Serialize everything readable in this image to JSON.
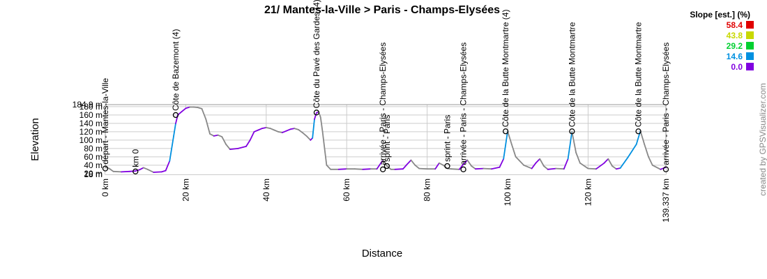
{
  "chart_data": {
    "type": "area",
    "title": "21/ Mantes-la-Ville > Paris - Champs-Elysées",
    "xlabel": "Distance",
    "ylabel": "Elevation",
    "xlim": [
      0,
      139.337
    ],
    "ylim": [
      18,
      184.9
    ],
    "x_ticks": [
      {
        "value": 0,
        "label": "0 km"
      },
      {
        "value": 20,
        "label": "20 km"
      },
      {
        "value": 40,
        "label": "40 km"
      },
      {
        "value": 60,
        "label": "60 km"
      },
      {
        "value": 80,
        "label": "80 km"
      },
      {
        "value": 100,
        "label": "100 km"
      },
      {
        "value": 120,
        "label": "120 km"
      },
      {
        "value": 139.337,
        "label": "139.337 km"
      }
    ],
    "y_ticks": [
      {
        "value": 18,
        "label": "18 m"
      },
      {
        "value": 20,
        "label": "20 m"
      },
      {
        "value": 40,
        "label": "40 m"
      },
      {
        "value": 60,
        "label": "60 m"
      },
      {
        "value": 80,
        "label": "80 m"
      },
      {
        "value": 100,
        "label": "100 m"
      },
      {
        "value": 120,
        "label": "120 m"
      },
      {
        "value": 140,
        "label": "140 m"
      },
      {
        "value": 160,
        "label": "160 m"
      },
      {
        "value": 180,
        "label": "180 m"
      },
      {
        "value": 184.9,
        "label": "184.9 m"
      }
    ],
    "profile": {
      "x": [
        0,
        1,
        2,
        4,
        6,
        7.5,
        8.5,
        9.5,
        10.5,
        12,
        14,
        15,
        16,
        17,
        17.5,
        18,
        19,
        20,
        21,
        22,
        23,
        24,
        25,
        26,
        27,
        28,
        29,
        30,
        31,
        33,
        35,
        36,
        37,
        38,
        39,
        40,
        41,
        42,
        43,
        44,
        45,
        46,
        47,
        48,
        49,
        50,
        51,
        51.5,
        52,
        52.5,
        53,
        53.5,
        54,
        54.5,
        55,
        56,
        58,
        60,
        62,
        64,
        66,
        67.5,
        69,
        70,
        71,
        72,
        74,
        75,
        76,
        77,
        78,
        80,
        82,
        83,
        84,
        85,
        86,
        88,
        89,
        90,
        91,
        92,
        94,
        96,
        98,
        99,
        100,
        101,
        102,
        104,
        106,
        107,
        108,
        109,
        110,
        112,
        114,
        115,
        116,
        117,
        118,
        120,
        122,
        124,
        125,
        126,
        127,
        128,
        130,
        132,
        133,
        134,
        135,
        136,
        138,
        139.337
      ],
      "y": [
        35,
        32,
        25,
        24,
        25,
        26,
        29,
        34,
        30,
        23,
        24,
        27,
        50,
        110,
        140,
        160,
        168,
        176,
        179,
        179,
        178,
        175,
        150,
        115,
        110,
        112,
        108,
        90,
        78,
        80,
        85,
        100,
        120,
        124,
        128,
        130,
        128,
        124,
        120,
        118,
        122,
        126,
        128,
        125,
        118,
        110,
        100,
        105,
        150,
        165,
        168,
        155,
        120,
        80,
        40,
        30,
        30,
        31,
        31,
        30,
        31,
        31,
        52,
        38,
        30,
        30,
        31,
        42,
        52,
        40,
        32,
        31,
        31,
        45,
        40,
        32,
        31,
        30,
        42,
        52,
        38,
        31,
        32,
        31,
        35,
        55,
        121,
        90,
        60,
        40,
        32,
        45,
        55,
        38,
        30,
        32,
        31,
        55,
        120,
        70,
        45,
        32,
        31,
        45,
        55,
        38,
        31,
        33,
        60,
        90,
        122,
        90,
        60,
        40,
        30,
        35
      ]
    },
    "waypoints": [
      {
        "x": 0,
        "y": 32,
        "label": "départ - Mantes-la-Ville"
      },
      {
        "x": 7.5,
        "y": 25,
        "label": "km 0"
      },
      {
        "x": 17.5,
        "y": 160,
        "label": "Côte de Bazemont (4)"
      },
      {
        "x": 52.5,
        "y": 166,
        "label": "Côte du Pavé des Gardes (4)"
      },
      {
        "x": 69,
        "y": 30,
        "label": "arrivée - Paris - Champs-Elysées"
      },
      {
        "x": 70,
        "y": 38,
        "label": "sprint - Paris"
      },
      {
        "x": 85,
        "y": 38,
        "label": "sprint - Paris"
      },
      {
        "x": 89,
        "y": 30,
        "label": "arrivée - Paris - Champs-Elysées"
      },
      {
        "x": 99.5,
        "y": 121,
        "label": "Côte de la Butte Montmartre (4)"
      },
      {
        "x": 116,
        "y": 121,
        "label": "Côte de la Butte Montmartre"
      },
      {
        "x": 132.5,
        "y": 121,
        "label": "Côte de la Butte Montmartre"
      },
      {
        "x": 139.337,
        "y": 30,
        "label": "arrivée - Paris - Champs-Elysées"
      }
    ],
    "legend": {
      "title": "Slope [est.] (%)",
      "placement": "top-right",
      "items": [
        {
          "label": "58.4",
          "color": "#e00000"
        },
        {
          "label": "43.8",
          "color": "#c8d800"
        },
        {
          "label": "29.2",
          "color": "#00d030"
        },
        {
          "label": "14.6",
          "color": "#0090e0"
        },
        {
          "label": "0.0",
          "color": "#8000e0"
        }
      ]
    },
    "credit": "created by GPSVisualizer.com"
  }
}
